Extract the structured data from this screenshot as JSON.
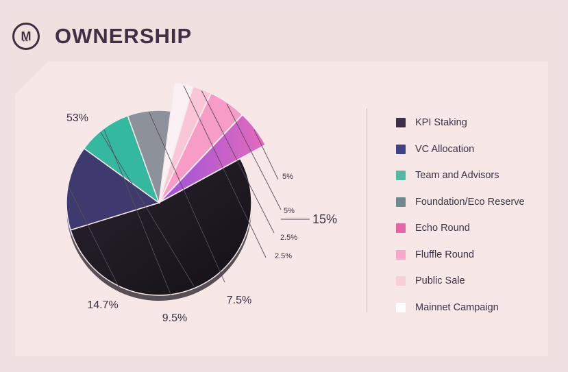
{
  "header": {
    "title": "OWNERSHIP",
    "logo_letter": "M",
    "logo_dots": "••"
  },
  "chart_data": {
    "type": "pie",
    "title": "OWNERSHIP",
    "slices": [
      {
        "name": "KPI Staking",
        "value": 53,
        "label": "53%",
        "color": "#221b26"
      },
      {
        "name": "VC Allocation",
        "value": 14.7,
        "label": "14.7%",
        "color": "#3e3a6e"
      },
      {
        "name": "Team and Advisors",
        "value": 9.5,
        "label": "9.5%",
        "color": "#35b8a0"
      },
      {
        "name": "Foundation/Eco Reserve",
        "value": 7.5,
        "label": "7.5%",
        "color": "#8d9199"
      },
      {
        "name": "Mainnet Campaign",
        "value": 2.5,
        "label": "2.5%",
        "color": "#fbf1f5"
      },
      {
        "name": "Public Sale",
        "value": 2.5,
        "label": "2.5%",
        "color": "#f8c6d6"
      },
      {
        "name": "Fluffle Round",
        "value": 5,
        "label": "5%",
        "color": "#f69cc6"
      },
      {
        "name": "Echo Round",
        "value": 5,
        "label": "5%",
        "color": "#c55ec3"
      }
    ],
    "group_label": "15%",
    "legend_placement": "right"
  },
  "legend": [
    {
      "label": "KPI Staking",
      "color": "#3d2f4a"
    },
    {
      "label": "VC Allocation",
      "color": "#3e4385"
    },
    {
      "label": "Team and Advisors",
      "color": "#52b9a2"
    },
    {
      "label": "Foundation/Eco Reserve",
      "color": "#6e8a8f"
    },
    {
      "label": "Echo Round",
      "color": "#e466a8"
    },
    {
      "label": "Fluffle Round",
      "color": "#f6a8c8"
    },
    {
      "label": "Public Sale",
      "color": "#f7cfd5"
    },
    {
      "label": "Mainnet Campaign",
      "color": "#ffffff"
    }
  ]
}
